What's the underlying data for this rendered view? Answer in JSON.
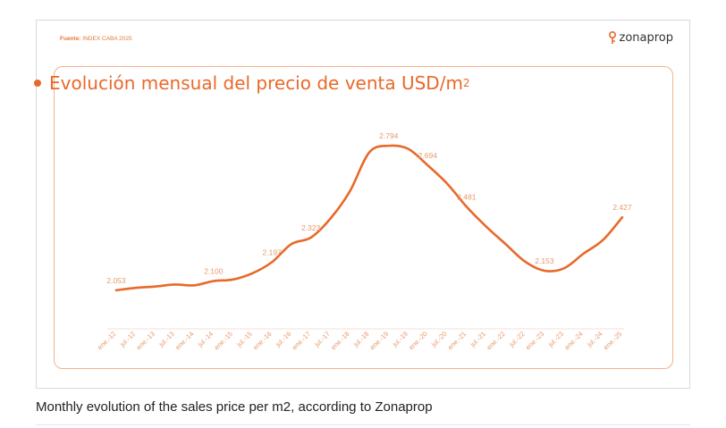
{
  "source": {
    "label": "Fuente:",
    "text": "INDEX CABA 2025"
  },
  "logo": {
    "text": "zonaprop",
    "icon": "location-pin-icon"
  },
  "chart_title": {
    "main": "Evolución mensual del precio de venta USD/m",
    "superscript": "2"
  },
  "caption": "Monthly evolution of the sales price per m2, according to Zonaprop",
  "colors": {
    "accent": "#e8692a",
    "panel_border": "#f2b48c",
    "label": "#e89a6a"
  },
  "chart_data": {
    "type": "line",
    "title": "Evolución mensual del precio de venta USD/m2",
    "xlabel": "",
    "ylabel": "",
    "ylim": [
      1800,
      2900
    ],
    "categories": [
      "ene.-12",
      "jul.-12",
      "ene.-13",
      "jul.-13",
      "ene.-14",
      "jul.-14",
      "ene.-15",
      "jul.-15",
      "ene.-16",
      "jul.-16",
      "ene.-17",
      "jul.-17",
      "ene.-18",
      "jul.-18",
      "ene.-19",
      "jul.-19",
      "ene.-20",
      "jul.-20",
      "ene.-21",
      "jul.-21",
      "ene.-22",
      "jul.-22",
      "ene.-23",
      "jul.-23",
      "ene.-24",
      "jul.-24",
      "ene.-25"
    ],
    "series": [
      {
        "name": "USD/m2",
        "values": [
          2053,
          2065,
          2072,
          2082,
          2078,
          2100,
          2108,
          2140,
          2197,
          2290,
          2323,
          2420,
          2560,
          2760,
          2794,
          2778,
          2694,
          2600,
          2481,
          2380,
          2290,
          2200,
          2153,
          2165,
          2240,
          2310,
          2427
        ]
      }
    ],
    "annotations": [
      {
        "index": 0,
        "label": "2.053"
      },
      {
        "index": 5,
        "label": "2.100"
      },
      {
        "index": 8,
        "label": "2.197"
      },
      {
        "index": 10,
        "label": "2.323"
      },
      {
        "index": 14,
        "label": "2.794"
      },
      {
        "index": 16,
        "label": "2.694"
      },
      {
        "index": 18,
        "label": "2.481"
      },
      {
        "index": 22,
        "label": "2.153"
      },
      {
        "index": 26,
        "label": "2.427"
      }
    ]
  }
}
